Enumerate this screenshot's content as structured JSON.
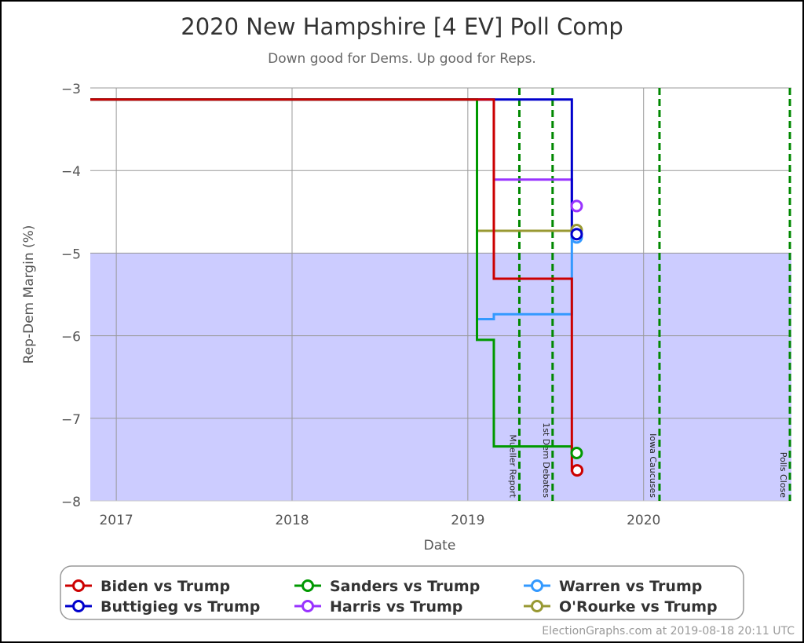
{
  "chart_data": {
    "type": "line",
    "title": "2020 New Hampshire [4 EV] Poll Comp",
    "subtitle": "Down good for Dems. Up good for Reps.",
    "xlabel": "Date",
    "ylabel": "Rep-Dem Margin (%)",
    "xlim": [
      "2016-11-08",
      "2020-11-03"
    ],
    "ylim": [
      -8,
      -3
    ],
    "x_ticks": [
      {
        "date": "2017-01-01",
        "label": "2017"
      },
      {
        "date": "2018-01-01",
        "label": "2018"
      },
      {
        "date": "2019-01-01",
        "label": "2019"
      },
      {
        "date": "2020-01-01",
        "label": "2020"
      }
    ],
    "y_ticks": [
      -3,
      -4,
      -5,
      -6,
      -7,
      -8
    ],
    "y_tick_labels": [
      "−3",
      "−4",
      "−5",
      "−6",
      "−7",
      "−8"
    ],
    "grid": true,
    "shaded_region": {
      "from": -8,
      "to": -5,
      "color": "#ccccff"
    },
    "events": [
      {
        "date": "2019-04-18",
        "label": "Mueller Report"
      },
      {
        "date": "2019-06-26",
        "label": "1st Dem Debates"
      },
      {
        "date": "2020-02-03",
        "label": "Iowa Caucuses"
      },
      {
        "date": "2020-11-03",
        "label": "Polls Close"
      }
    ],
    "event_color": "#008800",
    "legend_position": "bottom",
    "series": [
      {
        "name": "O'Rourke vs Trump",
        "color": "#999933",
        "points": [
          [
            "2016-11-08",
            -3.14
          ],
          [
            "2019-01-20",
            -4.73
          ],
          [
            "2019-08-05",
            -4.72
          ]
        ],
        "end": "2019-08-15"
      },
      {
        "name": "Warren vs Trump",
        "color": "#3399ff",
        "points": [
          [
            "2016-11-08",
            -3.14
          ],
          [
            "2019-01-20",
            -5.8
          ],
          [
            "2019-02-24",
            -5.74
          ],
          [
            "2019-08-05",
            -4.81
          ]
        ],
        "end": "2019-08-15"
      },
      {
        "name": "Harris vs Trump",
        "color": "#9933ff",
        "points": [
          [
            "2016-11-08",
            -3.14
          ],
          [
            "2019-02-24",
            -4.11
          ],
          [
            "2019-08-05",
            -4.43
          ]
        ],
        "end": "2019-08-15"
      },
      {
        "name": "Buttigieg vs Trump",
        "color": "#0000cc",
        "points": [
          [
            "2016-11-08",
            -3.14
          ],
          [
            "2019-08-05",
            -4.77
          ]
        ],
        "end": "2019-08-15"
      },
      {
        "name": "Sanders vs Trump",
        "color": "#009900",
        "points": [
          [
            "2016-11-08",
            -3.14
          ],
          [
            "2019-01-20",
            -6.05
          ],
          [
            "2019-02-24",
            -7.34
          ],
          [
            "2019-08-05",
            -7.42
          ]
        ],
        "end": "2019-08-15"
      },
      {
        "name": "Biden vs Trump",
        "color": "#cc0000",
        "points": [
          [
            "2016-11-08",
            -3.14
          ],
          [
            "2019-02-24",
            -5.31
          ],
          [
            "2019-08-05",
            -7.63
          ]
        ],
        "end": "2019-08-16"
      }
    ],
    "legend_order": [
      "Biden vs Trump",
      "Sanders vs Trump",
      "Warren vs Trump",
      "Buttigieg vs Trump",
      "Harris vs Trump",
      "O'Rourke vs Trump"
    ]
  },
  "footer": "ElectionGraphs.com at 2019-08-18 20:11 UTC"
}
